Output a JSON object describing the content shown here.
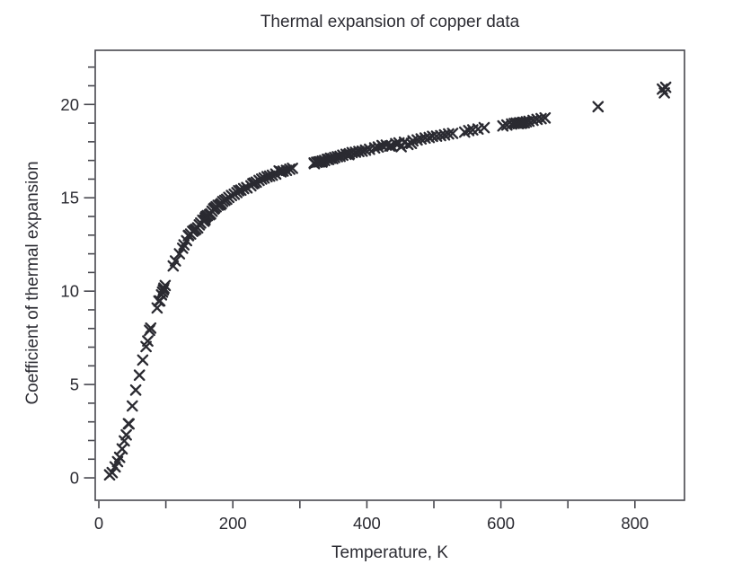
{
  "figure": {
    "title": "Thermal expansion of copper data"
  },
  "chart_data": {
    "type": "scatter",
    "title": "Thermal expansion of copper data",
    "xlabel": "Temperature, K",
    "ylabel": "Coefficient of thermal expansion",
    "marker": "x",
    "marker_color": "#2a2a31",
    "axis_color": "#47474e",
    "text_color": "#2a2a31",
    "grid": false,
    "legend": null,
    "xlim": [
      -5.4,
      874
    ],
    "ylim": [
      -1.2,
      22.9
    ],
    "x_ticks": [
      0,
      100,
      200,
      300,
      400,
      500,
      600,
      700,
      800
    ],
    "x_labeled_ticks": [
      0,
      200,
      400,
      600,
      800
    ],
    "x_tick_labels": [
      "0",
      "200",
      "400",
      "600",
      "800"
    ],
    "y_ticks": [
      0,
      1,
      2,
      3,
      4,
      5,
      6,
      7,
      8,
      9,
      10,
      11,
      12,
      13,
      14,
      15,
      16,
      17,
      18,
      19,
      20,
      21,
      22
    ],
    "y_labeled_ticks": [
      0,
      5,
      10,
      15,
      20
    ],
    "y_tick_labels": [
      "0",
      "5",
      "10",
      "15",
      "20"
    ],
    "points": [
      [
        16,
        0.16
      ],
      [
        20,
        0.28
      ],
      [
        24.4,
        0.59
      ],
      [
        28,
        0.87
      ],
      [
        31,
        1.1
      ],
      [
        34.8,
        1.55
      ],
      [
        38,
        1.98
      ],
      [
        41,
        2.3
      ],
      [
        44.1,
        2.9
      ],
      [
        45.1,
        2.89
      ],
      [
        50,
        3.85
      ],
      [
        55,
        4.7
      ],
      [
        60.5,
        5.5
      ],
      [
        65.5,
        6.31
      ],
      [
        70.5,
        7.03
      ],
      [
        73,
        7.33
      ],
      [
        75.7,
        7.9
      ],
      [
        77.5,
        8.02
      ],
      [
        87,
        9.1
      ],
      [
        89.6,
        9.47
      ],
      [
        91.1,
        9.48
      ],
      [
        93.5,
        9.8
      ],
      [
        95,
        9.95
      ],
      [
        96.4,
        10.07
      ],
      [
        97.2,
        10.16
      ],
      [
        99,
        10.3
      ],
      [
        111,
        11.35
      ],
      [
        114.3,
        11.62
      ],
      [
        120.3,
        12.0
      ],
      [
        125,
        12.3
      ],
      [
        127.1,
        12.48
      ],
      [
        131,
        12.7
      ],
      [
        133.6,
        12.97
      ],
      [
        134,
        12.99
      ],
      [
        137,
        13.06
      ],
      [
        140,
        13.2
      ],
      [
        142.5,
        13.26
      ],
      [
        144.7,
        13.32
      ],
      [
        147.6,
        13.39
      ],
      [
        150,
        13.55
      ],
      [
        152,
        13.65
      ],
      [
        155,
        13.8
      ],
      [
        156.9,
        13.74
      ],
      [
        158.5,
        13.82
      ],
      [
        158.7,
        13.93
      ],
      [
        160,
        14.0
      ],
      [
        162,
        14.05
      ],
      [
        165.1,
        14.09
      ],
      [
        166.9,
        14.14
      ],
      [
        169,
        14.28
      ],
      [
        171.3,
        14.4
      ],
      [
        172.7,
        14.45
      ],
      [
        175,
        14.52
      ],
      [
        178,
        14.6
      ],
      [
        181.1,
        14.62
      ],
      [
        182.8,
        14.69
      ],
      [
        185,
        14.8
      ],
      [
        188,
        14.86
      ],
      [
        190.8,
        14.92
      ],
      [
        194,
        15.02
      ],
      [
        198,
        15.12
      ],
      [
        202.1,
        15.19
      ],
      [
        206,
        15.28
      ],
      [
        208.7,
        15.38
      ],
      [
        212,
        15.41
      ],
      [
        216,
        15.49
      ],
      [
        220.6,
        15.55
      ],
      [
        221.1,
        15.53
      ],
      [
        226.9,
        15.64
      ],
      [
        229.7,
        15.75
      ],
      [
        231.7,
        15.79
      ],
      [
        235,
        15.84
      ],
      [
        239.1,
        15.93
      ],
      [
        243,
        16.0
      ],
      [
        246.7,
        16.06
      ],
      [
        251,
        16.13
      ],
      [
        255,
        16.16
      ],
      [
        259,
        16.21
      ],
      [
        264,
        16.27
      ],
      [
        269,
        16.44
      ],
      [
        271.8,
        16.39
      ],
      [
        275,
        16.43
      ],
      [
        280,
        16.47
      ],
      [
        285,
        16.53
      ],
      [
        289,
        16.58
      ],
      [
        321.3,
        16.87
      ],
      [
        321.7,
        16.83
      ],
      [
        325,
        16.9
      ],
      [
        328,
        16.92
      ],
      [
        330.1,
        16.93
      ],
      [
        333,
        16.91
      ],
      [
        333.5,
        16.97
      ],
      [
        337,
        17.0
      ],
      [
        340.8,
        17.06
      ],
      [
        343,
        17.05
      ],
      [
        345.7,
        17.12
      ],
      [
        349,
        17.1
      ],
      [
        352,
        17.16
      ],
      [
        356,
        17.2
      ],
      [
        360,
        17.22
      ],
      [
        364,
        17.28
      ],
      [
        369,
        17.33
      ],
      [
        373.1,
        17.31
      ],
      [
        373.8,
        17.36
      ],
      [
        378,
        17.42
      ],
      [
        383,
        17.44
      ],
      [
        388,
        17.48
      ],
      [
        393,
        17.5
      ],
      [
        398,
        17.55
      ],
      [
        404,
        17.6
      ],
      [
        411.6,
        17.67
      ],
      [
        417,
        17.72
      ],
      [
        422.6,
        17.8
      ],
      [
        423.6,
        17.77
      ],
      [
        429,
        17.82
      ],
      [
        434.2,
        17.77
      ],
      [
        437,
        17.78
      ],
      [
        443,
        17.9
      ],
      [
        448,
        17.94
      ],
      [
        451.2,
        17.74
      ],
      [
        456,
        17.98
      ],
      [
        461.3,
        17.86
      ],
      [
        466.5,
        17.91
      ],
      [
        468.8,
        18.05
      ],
      [
        475,
        18.1
      ],
      [
        481,
        18.15
      ],
      [
        487,
        18.2
      ],
      [
        493,
        18.23
      ],
      [
        498,
        18.29
      ],
      [
        504,
        18.3
      ],
      [
        510,
        18.33
      ],
      [
        516,
        18.37
      ],
      [
        522,
        18.42
      ],
      [
        528,
        18.45
      ],
      [
        546,
        18.52
      ],
      [
        552,
        18.6
      ],
      [
        558,
        18.64
      ],
      [
        566,
        18.68
      ],
      [
        575,
        18.76
      ],
      [
        603,
        18.85
      ],
      [
        609,
        18.9
      ],
      [
        616,
        18.95
      ],
      [
        620,
        18.98
      ],
      [
        623,
        19.0
      ],
      [
        626,
        18.97
      ],
      [
        628,
        19.02
      ],
      [
        630,
        18.99
      ],
      [
        631.5,
        19.01
      ],
      [
        633,
        19.04
      ],
      [
        635,
        19.02
      ],
      [
        638,
        19.07
      ],
      [
        642,
        19.1
      ],
      [
        648,
        19.15
      ],
      [
        654,
        19.2
      ],
      [
        660,
        19.24
      ],
      [
        666,
        19.28
      ],
      [
        745,
        19.88
      ],
      [
        841,
        20.82
      ],
      [
        844,
        20.62
      ],
      [
        846,
        20.92
      ]
    ]
  }
}
